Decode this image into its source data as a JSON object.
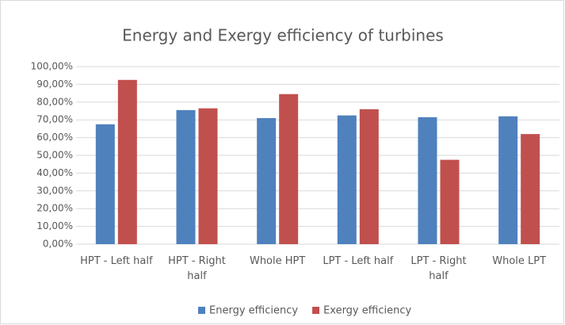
{
  "chart_data": {
    "type": "bar",
    "title": "Energy and Exergy efficiency of turbines",
    "categories": [
      "HPT - Left half",
      "HPT - Right half",
      "Whole HPT",
      "LPT - Left half",
      "LPT - Right half",
      "Whole LPT"
    ],
    "series": [
      {
        "name": "Energy efficiency",
        "color": "#4f81bd",
        "values": [
          67.5,
          75.5,
          71,
          72.5,
          71.5,
          72
        ]
      },
      {
        "name": "Exergy efficiency",
        "color": "#c0504d",
        "values": [
          92.5,
          76.5,
          84.5,
          76,
          47.5,
          62
        ]
      }
    ],
    "ylim": [
      0,
      100
    ],
    "yticks": [
      {
        "value": 0,
        "label": "0,00%"
      },
      {
        "value": 10,
        "label": "10,00%"
      },
      {
        "value": 20,
        "label": "20,00%"
      },
      {
        "value": 30,
        "label": "30,00%"
      },
      {
        "value": 40,
        "label": "40,00%"
      },
      {
        "value": 50,
        "label": "50,00%"
      },
      {
        "value": 60,
        "label": "60,00%"
      },
      {
        "value": 70,
        "label": "70,00%"
      },
      {
        "value": 80,
        "label": "80,00%"
      },
      {
        "value": 90,
        "label": "90,00%"
      },
      {
        "value": 100,
        "label": "100,00%"
      }
    ],
    "grid": true,
    "legend": "bottom"
  }
}
